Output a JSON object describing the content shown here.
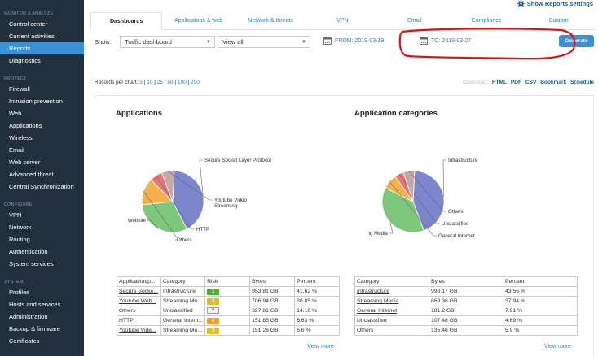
{
  "sidebar": {
    "sections": [
      {
        "title": "MONITOR & ANALYZE",
        "items": [
          "Control center",
          "Current activities",
          "Reports",
          "Diagnostics"
        ]
      },
      {
        "title": "PROTECT",
        "items": [
          "Firewall",
          "Intrusion prevention",
          "Web",
          "Applications",
          "Wireless",
          "Email",
          "Web server",
          "Advanced threat",
          "Central Synchronization"
        ]
      },
      {
        "title": "CONFIGURE",
        "items": [
          "VPN",
          "Network",
          "Routing",
          "Authentication",
          "System services"
        ]
      },
      {
        "title": "SYSTEM",
        "items": [
          "Profiles",
          "Hosts and services",
          "Administration",
          "Backup & firmware",
          "Certificates"
        ]
      }
    ],
    "active_item": "Reports"
  },
  "header": {
    "settings_link": "Show Reports settings"
  },
  "tabs": [
    {
      "label": "Dashboards",
      "active": true
    },
    {
      "label": "Applications & web",
      "active": false
    },
    {
      "label": "Network & threats",
      "active": false
    },
    {
      "label": "VPN",
      "active": false
    },
    {
      "label": "Email",
      "active": false
    },
    {
      "label": "Compliance",
      "active": false
    },
    {
      "label": "Custom",
      "active": false
    }
  ],
  "filters": {
    "show_label": "Show:",
    "dashboard_select": "Traffic dashboard",
    "view_select": "View all",
    "from_label": "FROM: 2019-03-19",
    "to_label": "TO: 2019-03-27",
    "generate_label": "Generate"
  },
  "records": {
    "label": "Records per chart:",
    "options": [
      "5",
      "10",
      "25",
      "50",
      "100",
      "200"
    ]
  },
  "download": {
    "label": "Download:",
    "links": [
      "HTML",
      "PDF",
      "CSV",
      "Bookmark",
      "Schedule"
    ]
  },
  "colors": {
    "sidebar_bg": "#22303d",
    "accent": "#3b90d6",
    "annotation": "#e01010",
    "pie": [
      "#7b86cc",
      "#7ec87e",
      "#f6b04a",
      "#e87474",
      "#c4a9aa"
    ],
    "risk_green": "#4caf30",
    "risk_yellow": "#e0c020",
    "risk_orange": "#f0a020"
  },
  "applications": {
    "title": "Applications",
    "table": {
      "headers": [
        "Application/p...",
        "Category",
        "Risk",
        "Bytes",
        "Percent"
      ],
      "rows": [
        {
          "name": "Secure Socke...",
          "category": "Infrastructure",
          "risk": "1",
          "risk_color": "#4caf30",
          "bytes": "953.81 GB",
          "percent": "41.62 %"
        },
        {
          "name": "Youtube Web...",
          "category": "Streaming Me...",
          "risk": "3",
          "risk_color": "#e0c020",
          "bytes": "706.94 GB",
          "percent": "30.85 %"
        },
        {
          "name": "Others",
          "category": "Unclassified",
          "risk": "?",
          "risk_color": "#f2f2f2",
          "bytes": "327.81 GB",
          "percent": "14.16 %"
        },
        {
          "name": "HTTP",
          "category": "General Intern...",
          "risk": "4",
          "risk_color": "#f0a020",
          "bytes": "151.85 GB",
          "percent": "6.63 %"
        },
        {
          "name": "Youtube Vide...",
          "category": "Streaming Me...",
          "risk": "3",
          "risk_color": "#e0c020",
          "bytes": "151.26 GB",
          "percent": "6.6 %"
        }
      ]
    },
    "view_more": "View more"
  },
  "app_categories": {
    "title": "Application categories",
    "table": {
      "headers": [
        "Category",
        "Bytes",
        "Percent"
      ],
      "rows": [
        {
          "name": "Infrastructure",
          "bytes": "998.17 GB",
          "percent": "43.56 %"
        },
        {
          "name": "Streaming Media",
          "bytes": "869.36 GB",
          "percent": "37.94 %"
        },
        {
          "name": "General Internet",
          "bytes": "181.2 GB",
          "percent": "7.91 %"
        },
        {
          "name": "Unclassified",
          "bytes": "107.48 GB",
          "percent": "4.69 %"
        },
        {
          "name": "Others",
          "bytes": "135.46 GB",
          "percent": "5.9 %"
        }
      ]
    },
    "view_more": "View more"
  },
  "chart_data": [
    {
      "type": "pie",
      "title": "Applications",
      "categories": [
        "Secure Socket Layer Protocol",
        "Youtube Website",
        "Others",
        "HTTP",
        "Youtube Video Streaming"
      ],
      "values": [
        41.62,
        30.85,
        14.16,
        6.63,
        6.6
      ],
      "colors": [
        "#7b86cc",
        "#7ec87e",
        "#f6b04a",
        "#e87474",
        "#c4a9aa"
      ]
    },
    {
      "type": "pie",
      "title": "Application categories",
      "categories": [
        "Infrastructure",
        "Streaming Media",
        "General Internet",
        "Unclassified",
        "Others"
      ],
      "values": [
        43.56,
        37.94,
        7.91,
        4.69,
        5.9
      ],
      "colors": [
        "#7b86cc",
        "#7ec87e",
        "#f6b04a",
        "#e87474",
        "#c4a9aa"
      ]
    }
  ]
}
